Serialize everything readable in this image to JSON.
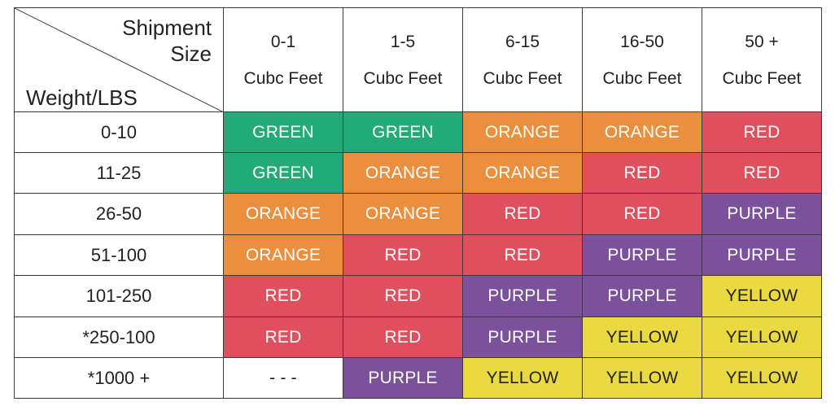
{
  "corner": {
    "top_line1": "Shipment",
    "top_line2": "Size",
    "bottom": "Weight/LBS"
  },
  "columns": [
    {
      "range": "0-1",
      "unit": "Cubc Feet"
    },
    {
      "range": "1-5",
      "unit": "Cubc Feet"
    },
    {
      "range": "6-15",
      "unit": "Cubc Feet"
    },
    {
      "range": "16-50",
      "unit": "Cubc Feet"
    },
    {
      "range": "50 +",
      "unit": "Cubc Feet"
    }
  ],
  "rows": [
    {
      "weight": "0-10",
      "cells": [
        "GREEN",
        "GREEN",
        "ORANGE",
        "ORANGE",
        "RED"
      ]
    },
    {
      "weight": "11-25",
      "cells": [
        "GREEN",
        "ORANGE",
        "ORANGE",
        "RED",
        "RED"
      ]
    },
    {
      "weight": "26-50",
      "cells": [
        "ORANGE",
        "ORANGE",
        "RED",
        "RED",
        "PURPLE"
      ]
    },
    {
      "weight": "51-100",
      "cells": [
        "ORANGE",
        "RED",
        "RED",
        "PURPLE",
        "PURPLE"
      ]
    },
    {
      "weight": "101-250",
      "cells": [
        "RED",
        "RED",
        "PURPLE",
        "PURPLE",
        "YELLOW"
      ]
    },
    {
      "weight": "*250-100",
      "cells": [
        "RED",
        "RED",
        "PURPLE",
        "YELLOW",
        "YELLOW"
      ]
    },
    {
      "weight": "*1000 +",
      "cells": [
        "- - -",
        "PURPLE",
        "YELLOW",
        "YELLOW",
        "YELLOW"
      ]
    }
  ],
  "colors": {
    "GREEN": "#22ab78",
    "ORANGE": "#ea8f3d",
    "RED": "#df4f5d",
    "PURPLE": "#7a519a",
    "YELLOW": "#ead940"
  }
}
